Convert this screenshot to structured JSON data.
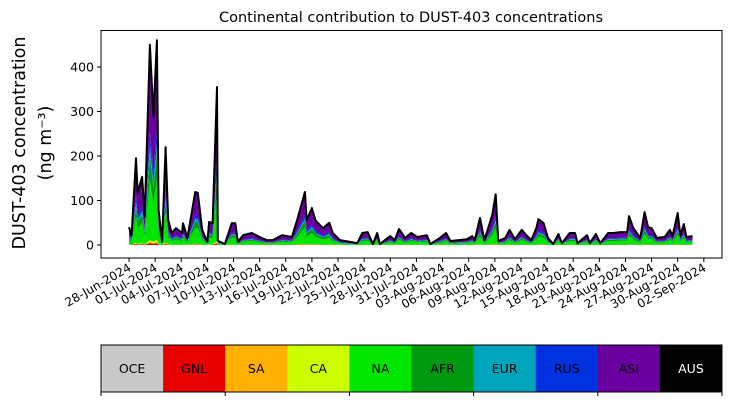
{
  "chart_data": {
    "type": "area",
    "stacked": true,
    "title": "Continental contribution to DUST-403 concentrations",
    "ylabel_line1": "DUST-403 concentration",
    "ylabel_line2": "(ng m⁻³)",
    "xlabel": "",
    "ylim": [
      -10,
      485
    ],
    "yticks": [
      0,
      100,
      200,
      300,
      400
    ],
    "x_units": "days since 28-Jun-2024",
    "xlim": [
      -3.2,
      68.1
    ],
    "xtick_labels": [
      "28-Jun-2024",
      "01-Jul-2024",
      "04-Jul-2024",
      "07-Jul-2024",
      "10-Jul-2024",
      "13-Jul-2024",
      "16-Jul-2024",
      "19-Jul-2024",
      "22-Jul-2024",
      "25-Jul-2024",
      "28-Jul-2024",
      "31-Jul-2024",
      "03-Aug-2024",
      "06-Aug-2024",
      "09-Aug-2024",
      "12-Aug-2024",
      "15-Aug-2024",
      "18-Aug-2024",
      "21-Aug-2024",
      "24-Aug-2024",
      "27-Aug-2024",
      "30-Aug-2024",
      "02-Sep-2024"
    ],
    "xtick_step_days": 3,
    "total": [
      [
        0,
        40
      ],
      [
        0.3,
        22
      ],
      [
        0.8,
        195
      ],
      [
        1.0,
        117
      ],
      [
        1.5,
        153
      ],
      [
        1.8,
        63
      ],
      [
        2.4,
        450
      ],
      [
        2.8,
        288
      ],
      [
        3.2,
        460
      ],
      [
        3.4,
        79
      ],
      [
        3.8,
        7
      ],
      [
        4.2,
        220
      ],
      [
        4.5,
        56
      ],
      [
        4.9,
        27
      ],
      [
        5.4,
        38
      ],
      [
        6.1,
        27
      ],
      [
        6.2,
        49
      ],
      [
        6.7,
        16
      ],
      [
        7.6,
        119
      ],
      [
        7.9,
        117
      ],
      [
        8.4,
        34
      ],
      [
        9.0,
        7
      ],
      [
        9.2,
        52
      ],
      [
        9.6,
        49
      ],
      [
        10.1,
        355
      ],
      [
        10.2,
        10
      ],
      [
        11.0,
        2
      ],
      [
        11.8,
        49
      ],
      [
        12.2,
        49
      ],
      [
        12.5,
        7
      ],
      [
        13.1,
        22
      ],
      [
        14.1,
        27
      ],
      [
        15.0,
        18
      ],
      [
        15.8,
        11
      ],
      [
        16.5,
        11
      ],
      [
        17.6,
        22
      ],
      [
        18.7,
        18
      ],
      [
        19.3,
        56
      ],
      [
        20.2,
        119
      ],
      [
        20.4,
        56
      ],
      [
        21.0,
        83
      ],
      [
        21.4,
        56
      ],
      [
        21.7,
        49
      ],
      [
        22.3,
        38
      ],
      [
        23.0,
        50
      ],
      [
        23.4,
        27
      ],
      [
        24.2,
        11
      ],
      [
        25.4,
        7
      ],
      [
        26.2,
        4
      ],
      [
        26.8,
        27
      ],
      [
        27.4,
        29
      ],
      [
        28.0,
        2
      ],
      [
        28.5,
        27
      ],
      [
        28.8,
        2
      ],
      [
        30.0,
        20
      ],
      [
        30.5,
        11
      ],
      [
        31.0,
        36
      ],
      [
        31.7,
        16
      ],
      [
        32.4,
        27
      ],
      [
        33.1,
        18
      ],
      [
        34.2,
        22
      ],
      [
        34.6,
        2
      ],
      [
        35.7,
        16
      ],
      [
        36.4,
        27
      ],
      [
        36.9,
        9
      ],
      [
        38.8,
        13
      ],
      [
        39.4,
        20
      ],
      [
        39.7,
        11
      ],
      [
        40.3,
        61
      ],
      [
        40.8,
        11
      ],
      [
        41.7,
        67
      ],
      [
        42.1,
        114
      ],
      [
        42.4,
        9
      ],
      [
        43.2,
        16
      ],
      [
        43.7,
        34
      ],
      [
        44.3,
        13
      ],
      [
        45.1,
        34
      ],
      [
        45.6,
        22
      ],
      [
        46.2,
        11
      ],
      [
        46.8,
        40
      ],
      [
        47.0,
        58
      ],
      [
        47.6,
        49
      ],
      [
        48.1,
        16
      ],
      [
        48.7,
        2
      ],
      [
        49.3,
        25
      ],
      [
        49.7,
        4
      ],
      [
        50.6,
        27
      ],
      [
        51.2,
        27
      ],
      [
        51.5,
        4
      ],
      [
        52.6,
        22
      ],
      [
        52.9,
        4
      ],
      [
        53.6,
        25
      ],
      [
        54.1,
        4
      ],
      [
        55.0,
        27
      ],
      [
        55.6,
        27
      ],
      [
        56.4,
        29
      ],
      [
        57.2,
        29
      ],
      [
        57.4,
        65
      ],
      [
        57.9,
        38
      ],
      [
        58.7,
        16
      ],
      [
        59.2,
        74
      ],
      [
        59.6,
        40
      ],
      [
        60.0,
        38
      ],
      [
        60.6,
        16
      ],
      [
        61.5,
        18
      ],
      [
        62.1,
        34
      ],
      [
        62.4,
        20
      ],
      [
        63.0,
        72
      ],
      [
        63.3,
        22
      ],
      [
        63.7,
        47
      ],
      [
        64.0,
        18
      ],
      [
        64.7,
        20
      ]
    ],
    "series": [
      {
        "name": "OCE",
        "color": "#c8c8c8",
        "approx_share": 0.0
      },
      {
        "name": "GNL",
        "color": "#e60000",
        "approx_share": 0.01
      },
      {
        "name": "SA",
        "color": "#ffb000",
        "approx_share": 0.005
      },
      {
        "name": "CA",
        "color": "#ccff00",
        "approx_share": 0.01
      },
      {
        "name": "NA",
        "color": "#00e600",
        "approx_share": 0.3
      },
      {
        "name": "AFR",
        "color": "#009a10",
        "approx_share": 0.12
      },
      {
        "name": "EUR",
        "color": "#00a5bb",
        "approx_share": 0.05
      },
      {
        "name": "RUS",
        "color": "#0032e0",
        "approx_share": 0.07
      },
      {
        "name": "ASI",
        "color": "#6a009f",
        "approx_share": 0.43
      },
      {
        "name": "AUS",
        "color": "#000000",
        "approx_share": 0.005
      }
    ],
    "legend": {
      "placement": "bottom",
      "style": "colorbar"
    }
  }
}
